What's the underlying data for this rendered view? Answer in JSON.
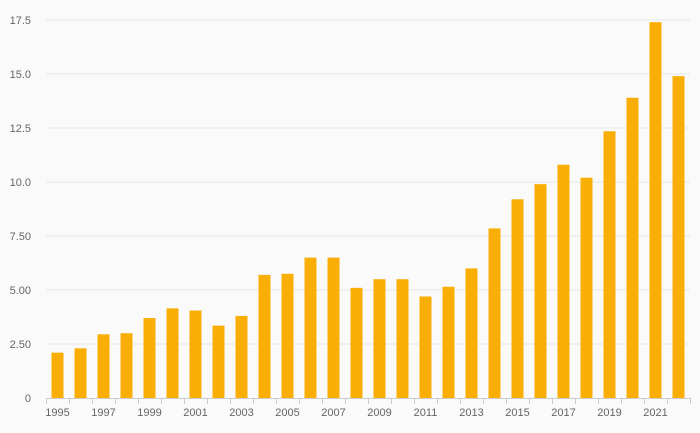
{
  "colors": {
    "background": "#fafafa",
    "bar": "#f9ae05",
    "gridline": "#e6e6e6",
    "axis": "#cccccc",
    "tick_text": "#666666"
  },
  "chart_data": {
    "type": "bar",
    "title": "",
    "xlabel": "",
    "ylabel": "",
    "ylim": [
      0,
      17.5
    ],
    "grid": true,
    "legend": "none",
    "y_ticks": [
      0,
      2.5,
      5,
      7.5,
      10,
      12.5,
      15,
      17.5
    ],
    "y_tick_labels": [
      "0",
      "2.50",
      "5.00",
      "7.50",
      "10.0",
      "12.5",
      "15.0",
      "17.5"
    ],
    "x_tick_labels": [
      "1995",
      "1997",
      "1999",
      "2001",
      "2003",
      "2005",
      "2007",
      "2009",
      "2011",
      "2013",
      "2015",
      "2017",
      "2019",
      "2021"
    ],
    "categories": [
      "1995",
      "1996",
      "1997",
      "1998",
      "1999",
      "2000",
      "2001",
      "2002",
      "2003",
      "2004",
      "2005",
      "2006",
      "2007",
      "2008",
      "2009",
      "2010",
      "2011",
      "2012",
      "2013",
      "2014",
      "2015",
      "2016",
      "2017",
      "2018",
      "2019",
      "2020",
      "2021",
      "2022"
    ],
    "values": [
      2.1,
      2.3,
      2.95,
      3.0,
      3.7,
      4.15,
      4.05,
      3.35,
      3.8,
      5.7,
      5.75,
      6.5,
      6.5,
      5.1,
      5.5,
      5.5,
      4.7,
      5.15,
      6.0,
      7.85,
      9.2,
      9.9,
      10.8,
      10.2,
      12.35,
      13.9,
      17.4,
      14.9
    ]
  }
}
